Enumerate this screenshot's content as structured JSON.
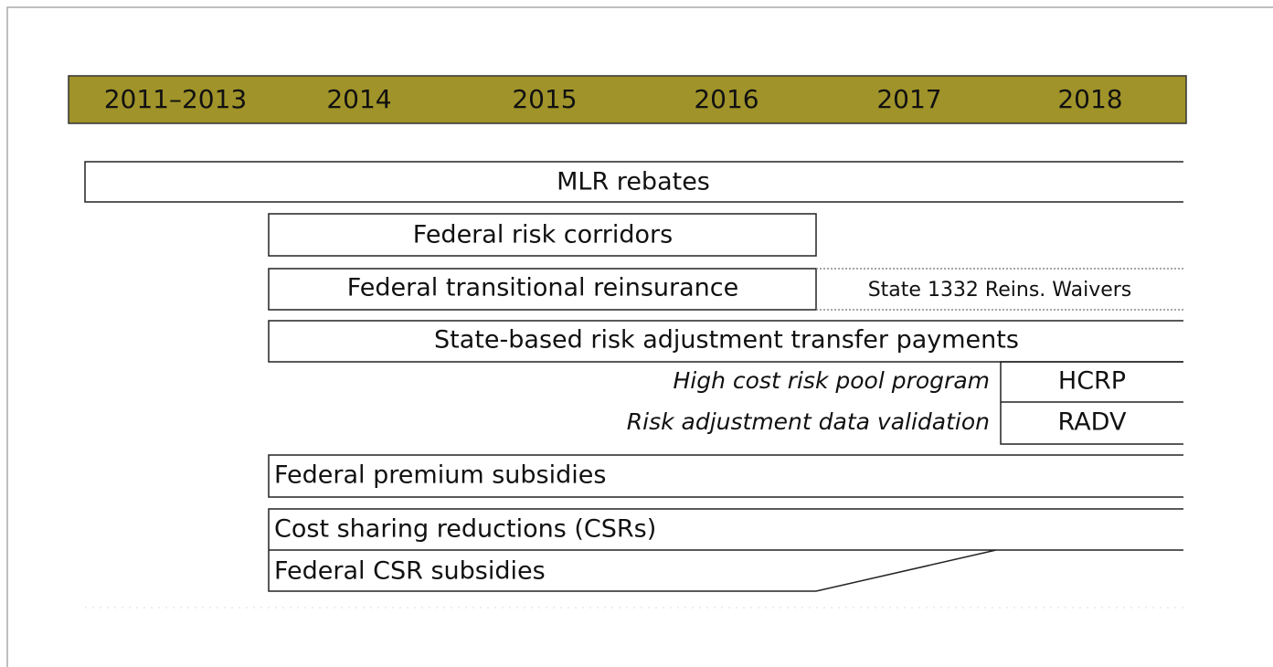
{
  "header": {
    "years": [
      "2011–2013",
      "2014",
      "2015",
      "2016",
      "2017",
      "2018"
    ]
  },
  "rows": {
    "mlr": "MLR rebates",
    "corridors": "Federal risk corridors",
    "reinsurance": "Federal transitional reinsurance",
    "waivers": "State 1332 Reins. Waivers",
    "risk_adjustment": "State-based risk adjustment transfer payments",
    "hcrp_desc": "High cost risk pool program",
    "hcrp": "HCRP",
    "radv_desc": "Risk adjustment data validation",
    "radv": "RADV",
    "premium": "Federal premium subsidies",
    "csr": "Cost sharing reductions (CSRs)",
    "csr_subsidies": "Federal CSR subsidies"
  }
}
